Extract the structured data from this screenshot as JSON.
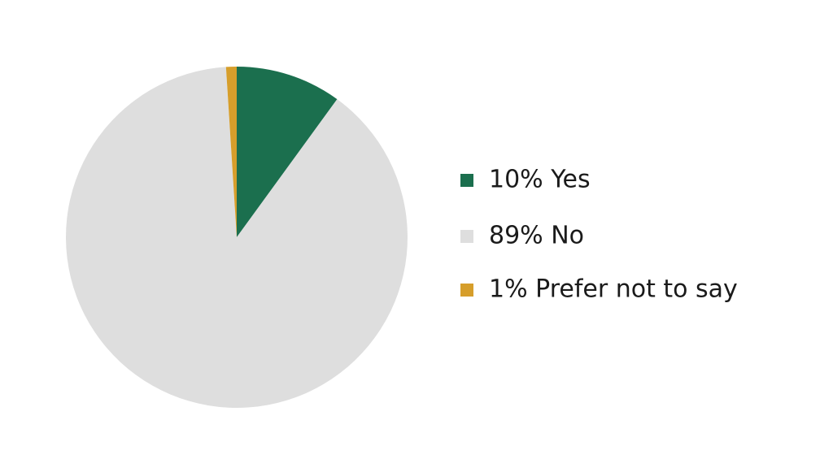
{
  "chart_data": {
    "type": "pie",
    "categories": [
      "10% Yes",
      "89% No",
      "1% Prefer not to say"
    ],
    "values": [
      10,
      89,
      1
    ],
    "colors": [
      "#1b6f4e",
      "#dedede",
      "#d69e2b"
    ]
  }
}
